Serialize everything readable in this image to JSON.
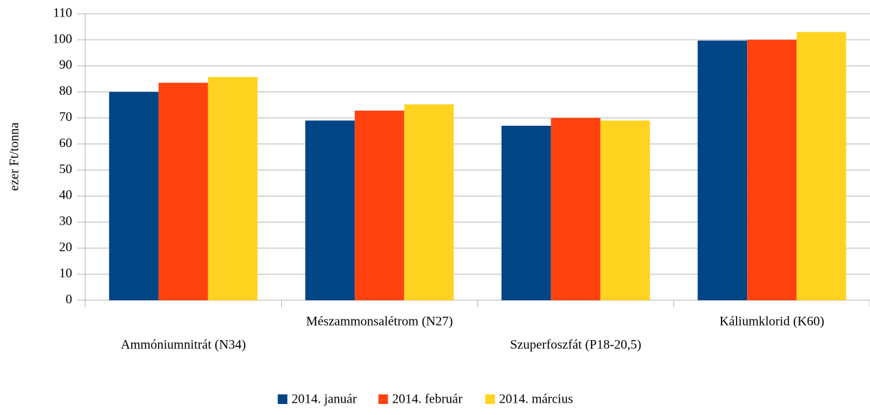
{
  "chart_data": {
    "type": "bar",
    "y_label": "ezer Ft/tonna",
    "categories": [
      "Ammóniumnitrát (N34)",
      "Mészammonsalétrom (N27)",
      "Szuperfoszfát (P18-20,5)",
      "Káliumklorid (K60)"
    ],
    "series": [
      {
        "name": "2014. január",
        "color": "#004586",
        "values": [
          80,
          69,
          67,
          99.7
        ]
      },
      {
        "name": "2014. február",
        "color": "#ff420e",
        "values": [
          83.5,
          72.8,
          70,
          100
        ]
      },
      {
        "name": "2014. március",
        "color": "#ffd320",
        "values": [
          85.7,
          75.2,
          69,
          103
        ]
      }
    ],
    "ylim": [
      0,
      110
    ],
    "yticks": [
      0,
      10,
      20,
      30,
      40,
      50,
      60,
      70,
      80,
      90,
      100,
      110
    ],
    "grid": true
  }
}
